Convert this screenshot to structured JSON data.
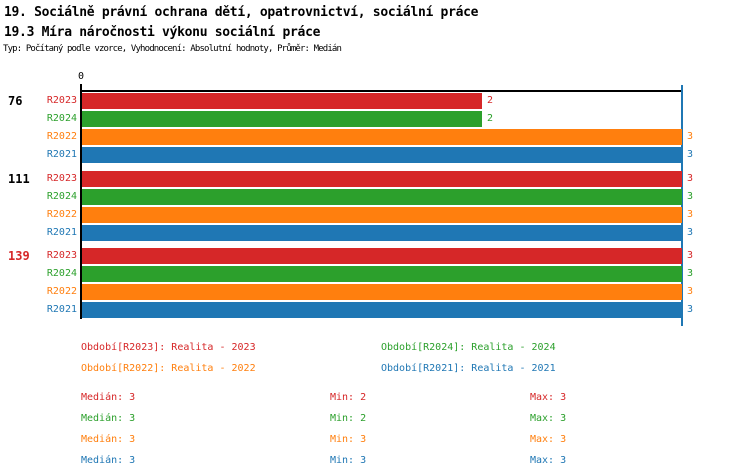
{
  "header": {
    "title_line1": "19. Sociálně právní ochrana dětí, opatrovnictví, sociální práce",
    "title_line2": "19.3 Míra náročnosti výkonu sociální práce",
    "subtitle": "Typ: Počítaný podle vzorce, Vyhodnocení: Absolutní hodnoty, Průměr: Medián"
  },
  "colors": {
    "R2023": "#d62728",
    "R2024": "#2ca02c",
    "R2022": "#ff7f0e",
    "R2021": "#1f77b4",
    "axis": "#000000",
    "median_line": "#1f77b4",
    "group_label_default": "#000000",
    "group_label_alert": "#d62728"
  },
  "chart_data": {
    "type": "bar",
    "orientation": "horizontal",
    "title": "19.3 Míra náročnosti výkonu sociální práce",
    "xlabel": "",
    "ylabel": "",
    "xlim": [
      0,
      3
    ],
    "origin_tick_label": "0",
    "median_line_x": 3,
    "grid": false,
    "series_order": [
      "R2023",
      "R2024",
      "R2022",
      "R2021"
    ],
    "groups": [
      {
        "label": "76",
        "label_color": "#000000",
        "bars": [
          {
            "series": "R2023",
            "value": 2
          },
          {
            "series": "R2024",
            "value": 2
          },
          {
            "series": "R2022",
            "value": 3
          },
          {
            "series": "R2021",
            "value": 3
          }
        ]
      },
      {
        "label": "111",
        "label_color": "#000000",
        "bars": [
          {
            "series": "R2023",
            "value": 3
          },
          {
            "series": "R2024",
            "value": 3
          },
          {
            "series": "R2022",
            "value": 3
          },
          {
            "series": "R2021",
            "value": 3
          }
        ]
      },
      {
        "label": "139",
        "label_color": "#d62728",
        "bars": [
          {
            "series": "R2023",
            "value": 3
          },
          {
            "series": "R2024",
            "value": 3
          },
          {
            "series": "R2022",
            "value": 3
          },
          {
            "series": "R2021",
            "value": 3
          }
        ]
      }
    ]
  },
  "legend": [
    {
      "series": "R2023",
      "text": "Období[R2023]: Realita - 2023"
    },
    {
      "series": "R2024",
      "text": "Období[R2024]: Realita - 2024"
    },
    {
      "series": "R2022",
      "text": "Období[R2022]: Realita - 2022"
    },
    {
      "series": "R2021",
      "text": "Období[R2021]: Realita - 2021"
    }
  ],
  "stats": [
    {
      "series": "R2023",
      "median": "Medián: 3",
      "min": "Min: 2",
      "max": "Max: 3"
    },
    {
      "series": "R2024",
      "median": "Medián: 3",
      "min": "Min: 2",
      "max": "Max: 3"
    },
    {
      "series": "R2022",
      "median": "Medián: 3",
      "min": "Min: 3",
      "max": "Max: 3"
    },
    {
      "series": "R2021",
      "median": "Medián: 3",
      "min": "Min: 3",
      "max": "Max: 3"
    }
  ]
}
